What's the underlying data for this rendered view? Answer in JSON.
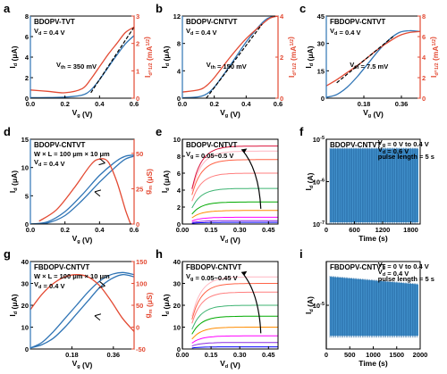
{
  "colors": {
    "blue": "#2f74b5",
    "red": "#e34a33",
    "dash": "#000000",
    "noise": "#2f86c8"
  },
  "chart_data": [
    {
      "type": "line",
      "panel": "a",
      "title": "BDOPV-TVT",
      "annotations": [
        "V_d = 0.4 V",
        "V_th = 350 mV"
      ],
      "xlabel": "V_g (V)",
      "ylabel": "I_d (μA)",
      "y2label": "I_d^1/2 (mA^1/2)",
      "xlim": [
        0,
        0.6
      ],
      "ylim": [
        0,
        8
      ],
      "y2lim": [
        0,
        3
      ],
      "xticks": [
        0.0,
        0.2,
        0.4,
        0.6
      ],
      "yticks": [
        0,
        2,
        4,
        6,
        8
      ],
      "y2ticks": [
        0,
        1,
        2,
        3
      ],
      "series": [
        {
          "axis": "left",
          "color": "blue",
          "x": [
            0,
            0.1,
            0.2,
            0.3,
            0.35,
            0.4,
            0.45,
            0.5,
            0.55,
            0.6
          ],
          "values": [
            0.05,
            0.06,
            0.1,
            0.3,
            0.8,
            1.8,
            3.0,
            4.2,
            5.3,
            6.1
          ]
        },
        {
          "axis": "right",
          "color": "red",
          "x": [
            0,
            0.1,
            0.2,
            0.3,
            0.35,
            0.4,
            0.45,
            0.5,
            0.55,
            0.6
          ],
          "values": [
            0.3,
            0.25,
            0.2,
            0.35,
            0.7,
            1.15,
            1.6,
            2.0,
            2.4,
            2.6
          ]
        }
      ],
      "fit": {
        "axis": "right",
        "x": [
          0.35,
          0.6
        ],
        "values": [
          0.2,
          2.6
        ]
      }
    },
    {
      "type": "line",
      "panel": "b",
      "title": "BDOPV-CNTVT",
      "annotations": [
        "V_d = 0.4 V",
        "V_th = 150 mV"
      ],
      "xlabel": "V_g (V)",
      "ylabel": "I_d (μA)",
      "y2label": "I_d^1/2 (mA^1/2)",
      "xlim": [
        0,
        0.6
      ],
      "ylim": [
        0,
        12
      ],
      "y2lim": [
        0,
        4
      ],
      "xticks": [
        0.0,
        0.2,
        0.4,
        0.6
      ],
      "yticks": [
        0,
        4,
        8,
        12
      ],
      "y2ticks": [
        0,
        2,
        4
      ],
      "series": [
        {
          "axis": "left",
          "color": "blue",
          "x": [
            0,
            0.1,
            0.15,
            0.2,
            0.3,
            0.4,
            0.5,
            0.55,
            0.6
          ],
          "values": [
            0.05,
            0.2,
            0.6,
            1.6,
            4.8,
            8.2,
            11.0,
            11.8,
            12.0
          ]
        },
        {
          "axis": "right",
          "color": "red",
          "x": [
            0,
            0.1,
            0.15,
            0.2,
            0.3,
            0.4,
            0.5,
            0.55,
            0.6
          ],
          "values": [
            0.3,
            0.4,
            0.6,
            1.0,
            2.0,
            2.9,
            3.6,
            3.9,
            4.0
          ]
        }
      ],
      "fit": {
        "axis": "right",
        "x": [
          0.15,
          0.5
        ],
        "values": [
          0.0,
          3.6
        ]
      }
    },
    {
      "type": "line",
      "panel": "c",
      "title": "FBDOPV-CNTVT",
      "annotations": [
        "V_d = 0.4 V",
        "V_th = 7.5 mV"
      ],
      "xlabel": "V_g (V)",
      "ylabel": "I_d (μA)",
      "y2label": "I_d^1/2 (mA^1/2)",
      "xlim": [
        0,
        0.45
      ],
      "ylim": [
        0,
        45
      ],
      "y2lim": [
        0,
        8
      ],
      "xticks": [
        0.18,
        0.36
      ],
      "yticks": [
        0,
        15,
        30,
        45
      ],
      "y2ticks": [
        0,
        2,
        4,
        6,
        8
      ],
      "series": [
        {
          "axis": "left",
          "color": "blue",
          "x": [
            0,
            0.05,
            0.1,
            0.15,
            0.2,
            0.25,
            0.3,
            0.35,
            0.4,
            0.45
          ],
          "values": [
            0.5,
            2,
            6,
            12,
            19,
            26,
            32,
            36,
            37,
            36.5
          ]
        },
        {
          "axis": "right",
          "color": "red",
          "x": [
            0,
            0.05,
            0.1,
            0.15,
            0.2,
            0.25,
            0.3,
            0.35,
            0.4,
            0.45
          ],
          "values": [
            1.2,
            1.8,
            2.5,
            3.2,
            4.0,
            4.8,
            5.5,
            6.1,
            6.4,
            6.5
          ]
        }
      ],
      "fit": {
        "axis": "right",
        "x": [
          0.05,
          0.32
        ],
        "values": [
          1.5,
          6.0
        ]
      }
    },
    {
      "type": "line",
      "panel": "d",
      "title": "BDOPV-CNTVT",
      "annotations": [
        "W × L = 100 μm × 10 μm",
        "V_d = 0.4 V"
      ],
      "xlabel": "V_g (V)",
      "ylabel": "I_d (μA)",
      "y2label": "g_m (μS)",
      "xlim": [
        0,
        0.6
      ],
      "ylim": [
        0,
        15
      ],
      "y2lim": [
        0,
        60
      ],
      "xticks": [
        0.0,
        0.2,
        0.4,
        0.6
      ],
      "yticks": [
        0,
        5,
        10,
        15
      ],
      "y2ticks": [
        0,
        25,
        50
      ],
      "series": [
        {
          "axis": "left",
          "color": "blue",
          "x": [
            0,
            0.1,
            0.2,
            0.3,
            0.4,
            0.5,
            0.55,
            0.6
          ],
          "values": [
            0,
            0.2,
            1.5,
            4.2,
            7.4,
            10.3,
            11.5,
            12.0
          ]
        },
        {
          "axis": "left",
          "color": "blue",
          "x": [
            0,
            0.1,
            0.2,
            0.3,
            0.4,
            0.5,
            0.55,
            0.6
          ],
          "values": [
            0,
            0.4,
            2.2,
            5.2,
            8.6,
            11.2,
            12.0,
            12.2
          ]
        },
        {
          "axis": "right",
          "color": "red",
          "x": [
            0.05,
            0.15,
            0.25,
            0.35,
            0.4,
            0.45,
            0.5,
            0.55,
            0.58
          ],
          "values": [
            2,
            10,
            25,
            42,
            46,
            44,
            30,
            10,
            0
          ]
        }
      ]
    },
    {
      "type": "line",
      "panel": "e",
      "title": "BDOPV-CNTVT",
      "annotations": [
        "V_g = 0.05~0.5 V"
      ],
      "xlabel": "V_d (V)",
      "ylabel": "I_d (μA)",
      "xlim": [
        0,
        0.5
      ],
      "ylim": [
        0,
        10
      ],
      "xticks": [
        0.0,
        0.15,
        0.3,
        0.45
      ],
      "yticks": [
        0,
        2,
        4,
        6,
        8,
        10
      ],
      "series_levels": [
        0.2,
        0.4,
        0.8,
        1.6,
        2.6,
        4.2,
        6.0,
        7.6,
        8.6,
        9.2
      ],
      "series_colors": [
        "#0000ff",
        "#8a2be2",
        "#ff00ff",
        "#ff8c00",
        "#00aa00",
        "#3cb371",
        "#ff7f7f",
        "#ff6347",
        "#ffb6c1",
        "#dc143c"
      ]
    },
    {
      "type": "line",
      "panel": "f",
      "title": "BDOPV-CNTVT",
      "annotations": [
        "V_g = 0 V to 0.4 V",
        "V_d = 0.6 V",
        "pulse length = 5 s"
      ],
      "xlabel": "Time (s)",
      "ylabel": "I_d (A)",
      "xlim": [
        0,
        2000
      ],
      "ylim_log": [
        1e-07,
        1e-05
      ],
      "xticks": [
        0,
        600,
        1200,
        1800
      ],
      "yticks": [
        "10^-7",
        "10^-6",
        "10^-5"
      ],
      "band": {
        "upper": 6e-06,
        "lower": 1.1e-07
      }
    },
    {
      "type": "line",
      "panel": "g",
      "title": "FBDOPV-CNTVT",
      "annotations": [
        "W × L = 100 μm × 10 μm",
        "V_d = 0.4 V"
      ],
      "xlabel": "V_g (V)",
      "ylabel": "I_d (μA)",
      "y2label": "g_m (μS)",
      "xlim": [
        0,
        0.45
      ],
      "ylim": [
        0,
        40
      ],
      "y2lim": [
        -50,
        150
      ],
      "xticks": [
        0.18,
        0.36
      ],
      "yticks": [
        0,
        10,
        20,
        30,
        40
      ],
      "y2ticks": [
        -50,
        0,
        50,
        100,
        150
      ],
      "series": [
        {
          "axis": "left",
          "color": "blue",
          "x": [
            0,
            0.05,
            0.1,
            0.15,
            0.2,
            0.25,
            0.3,
            0.35,
            0.4,
            0.45
          ],
          "values": [
            0.5,
            2,
            5,
            10,
            16,
            22,
            28,
            32,
            34,
            33
          ]
        },
        {
          "axis": "left",
          "color": "blue",
          "x": [
            0,
            0.05,
            0.1,
            0.15,
            0.2,
            0.25,
            0.3,
            0.35,
            0.4,
            0.45
          ],
          "values": [
            0.5,
            3,
            8,
            14,
            20,
            26,
            31,
            34,
            35,
            34
          ]
        },
        {
          "axis": "right",
          "color": "red",
          "x": [
            0,
            0.05,
            0.1,
            0.15,
            0.2,
            0.25,
            0.3,
            0.35,
            0.4,
            0.45
          ],
          "values": [
            40,
            75,
            100,
            115,
            120,
            115,
            95,
            60,
            20,
            -10
          ]
        }
      ]
    },
    {
      "type": "line",
      "panel": "h",
      "title": "FBDOPV-CNTVT",
      "annotations": [
        "V_g = 0.05~0.45 V"
      ],
      "xlabel": "V_d (V)",
      "ylabel": "I_d (μA)",
      "xlim": [
        0,
        0.5
      ],
      "ylim": [
        0,
        40
      ],
      "xticks": [
        0.0,
        0.15,
        0.3,
        0.45
      ],
      "yticks": [
        0,
        10,
        20,
        30,
        40
      ],
      "series_levels": [
        1,
        3,
        6,
        10,
        15,
        20,
        26,
        30,
        33
      ],
      "series_colors": [
        "#0000ff",
        "#8a2be2",
        "#ff00ff",
        "#ff8c00",
        "#00aa00",
        "#3cb371",
        "#ff7f7f",
        "#ff6347",
        "#ffb6c1"
      ]
    },
    {
      "type": "line",
      "panel": "i",
      "title": "FBDOPV-CNTVT",
      "annotations": [
        "V_g = 0 V to 0.4 V",
        "V_d = 0.4 V",
        "pulse length = 5 s"
      ],
      "xlabel": "Time (s)",
      "ylabel": "I_d (A)",
      "xlim": [
        0,
        2000
      ],
      "ylim_log": [
        1e-06,
        0.0001
      ],
      "xticks": [
        0,
        500,
        1000,
        1500,
        2000
      ],
      "yticks": [
        "10^-5"
      ],
      "band": {
        "upper_start": 4.5e-05,
        "upper_end": 3e-05,
        "lower": 2e-06
      }
    }
  ]
}
